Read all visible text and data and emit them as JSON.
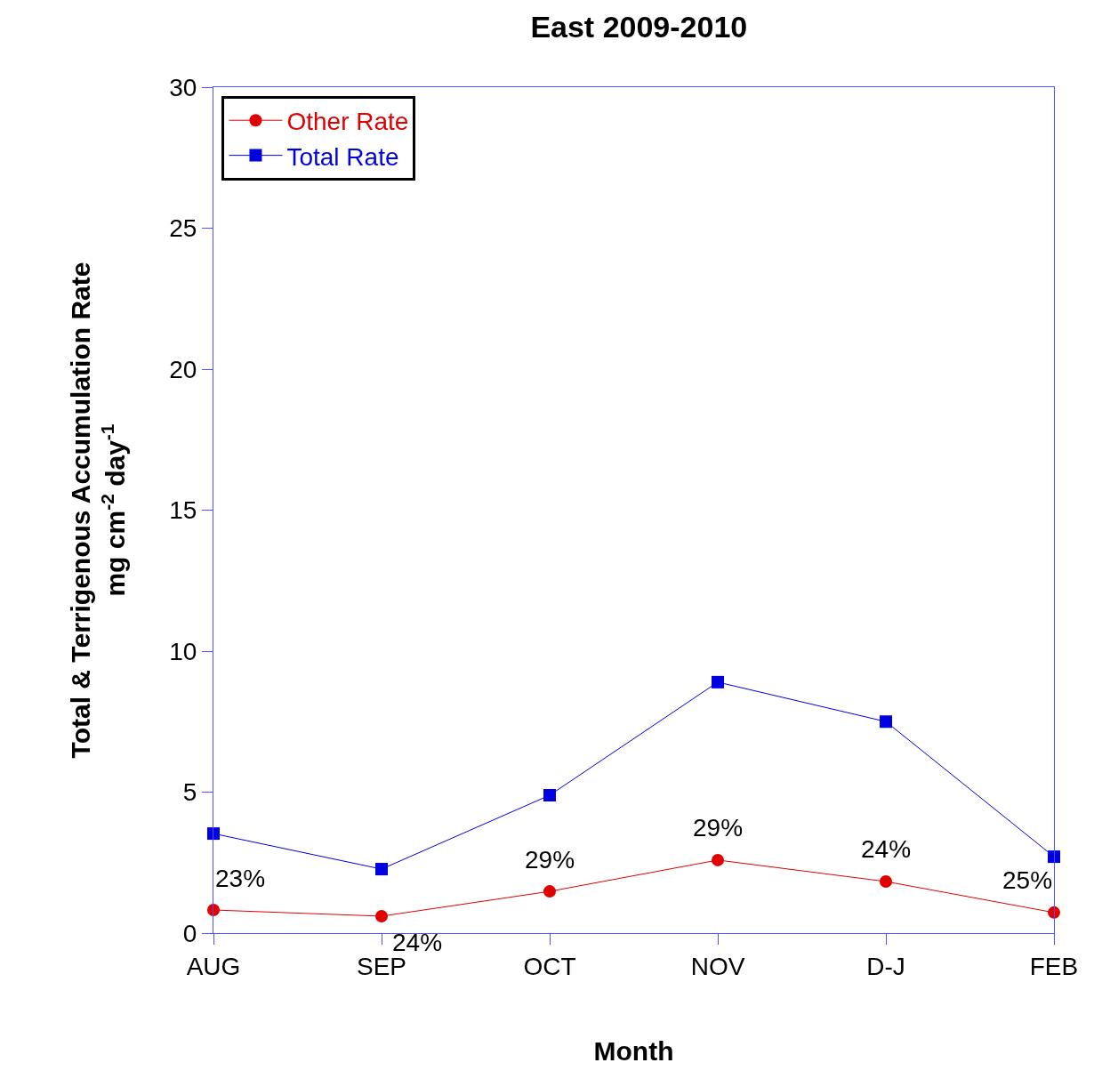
{
  "chart_data": {
    "type": "line",
    "title": "East 2009-2010",
    "xlabel": "Month",
    "ylabel": "Total & Terrigenous Accumulation Rate\nmg cm$^{-2}$ day$^{-1}$",
    "categories": [
      "AUG",
      "SEP",
      "OCT",
      "NOV",
      "D-J",
      "FEB"
    ],
    "series": [
      {
        "name": "Other Rate",
        "color": "#e00000",
        "marker": "circle",
        "values": [
          0.82,
          0.6,
          1.48,
          2.59,
          1.83,
          0.73
        ]
      },
      {
        "name": "Total Rate",
        "color": "#0000e0",
        "marker": "square",
        "values": [
          3.53,
          2.27,
          4.89,
          8.9,
          7.5,
          2.71
        ]
      }
    ],
    "ylim": [
      0,
      30
    ],
    "yticks": [
      0,
      5,
      10,
      15,
      20,
      25,
      30
    ],
    "annotations": [
      "23%",
      "24%",
      "29%",
      "29%",
      "24%",
      "25%"
    ],
    "legend": "top left",
    "line_style": "solid"
  }
}
